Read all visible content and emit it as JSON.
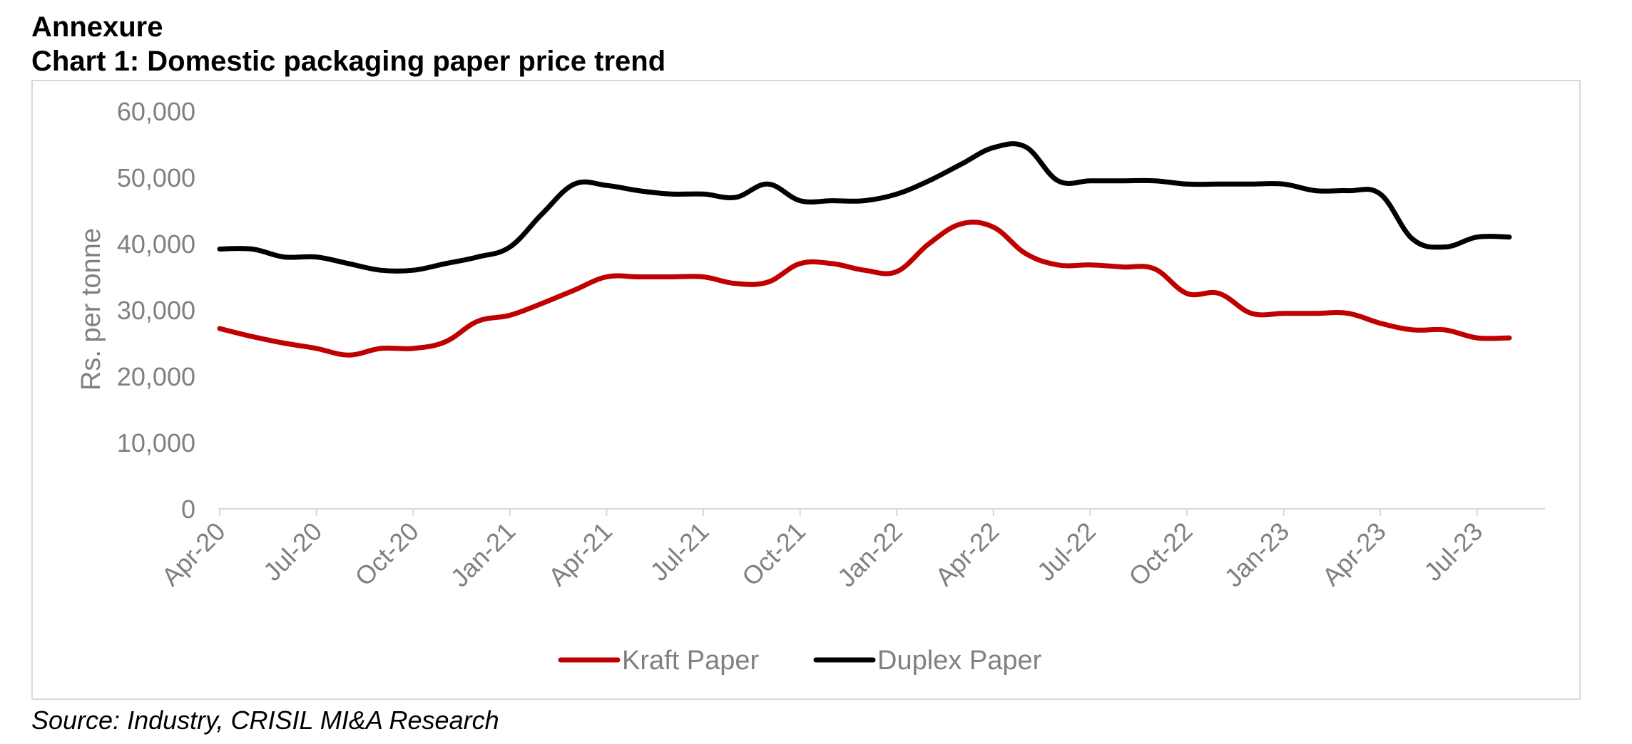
{
  "header": {
    "annexure": "Annexure",
    "chart_title": "Chart 1: Domestic packaging paper price trend"
  },
  "source": "Source: Industry, CRISIL MI&A Research",
  "chart_data": {
    "type": "line",
    "title": "Chart 1: Domestic packaging paper price trend",
    "xlabel": "",
    "ylabel": "Rs. per tonne",
    "ylim": [
      0,
      60000
    ],
    "yticks": [
      0,
      10000,
      20000,
      30000,
      40000,
      50000,
      60000
    ],
    "ytick_labels": [
      "0",
      "10,000",
      "20,000",
      "30,000",
      "40,000",
      "50,000",
      "60,000"
    ],
    "x_tick_labels": [
      "Apr-20",
      "Jul-20",
      "Oct-20",
      "Jan-21",
      "Apr-21",
      "Jul-21",
      "Oct-21",
      "Jan-22",
      "Apr-22",
      "Jul-22",
      "Oct-22",
      "Jan-23",
      "Apr-23",
      "Jul-23"
    ],
    "x": [
      "Apr-20",
      "May-20",
      "Jun-20",
      "Jul-20",
      "Aug-20",
      "Sep-20",
      "Oct-20",
      "Nov-20",
      "Dec-20",
      "Jan-21",
      "Feb-21",
      "Mar-21",
      "Apr-21",
      "May-21",
      "Jun-21",
      "Jul-21",
      "Aug-21",
      "Sep-21",
      "Oct-21",
      "Nov-21",
      "Dec-21",
      "Jan-22",
      "Feb-22",
      "Mar-22",
      "Apr-22",
      "May-22",
      "Jun-22",
      "Jul-22",
      "Aug-22",
      "Sep-22",
      "Oct-22",
      "Nov-22",
      "Dec-22",
      "Jan-23",
      "Feb-23",
      "Mar-23",
      "Apr-23",
      "May-23",
      "Jun-23",
      "Jul-23",
      "Aug-23"
    ],
    "grid": false,
    "legend_position": "bottom",
    "series": [
      {
        "name": "Kraft Paper",
        "color": "#c00000",
        "values": [
          27200,
          26000,
          25000,
          24200,
          23200,
          24200,
          24200,
          25200,
          28300,
          29200,
          31000,
          33000,
          35000,
          35000,
          35000,
          35000,
          34000,
          34200,
          37000,
          37000,
          36000,
          35800,
          40000,
          43000,
          42500,
          38500,
          36800,
          36800,
          36500,
          36200,
          32500,
          32500,
          29500,
          29500,
          29500,
          29500,
          28000,
          27000,
          27000,
          25800,
          25800
        ]
      },
      {
        "name": "Duplex Paper",
        "color": "#000000",
        "values": [
          39200,
          39200,
          38000,
          38000,
          37000,
          36000,
          36000,
          37000,
          38000,
          39500,
          44500,
          49000,
          48800,
          48000,
          47500,
          47500,
          47000,
          49000,
          46500,
          46500,
          46500,
          47500,
          49500,
          52000,
          54500,
          54600,
          49500,
          49500,
          49500,
          49500,
          49000,
          49000,
          49000,
          49000,
          48000,
          48000,
          47500,
          40700,
          39500,
          41000,
          41000
        ]
      }
    ]
  }
}
